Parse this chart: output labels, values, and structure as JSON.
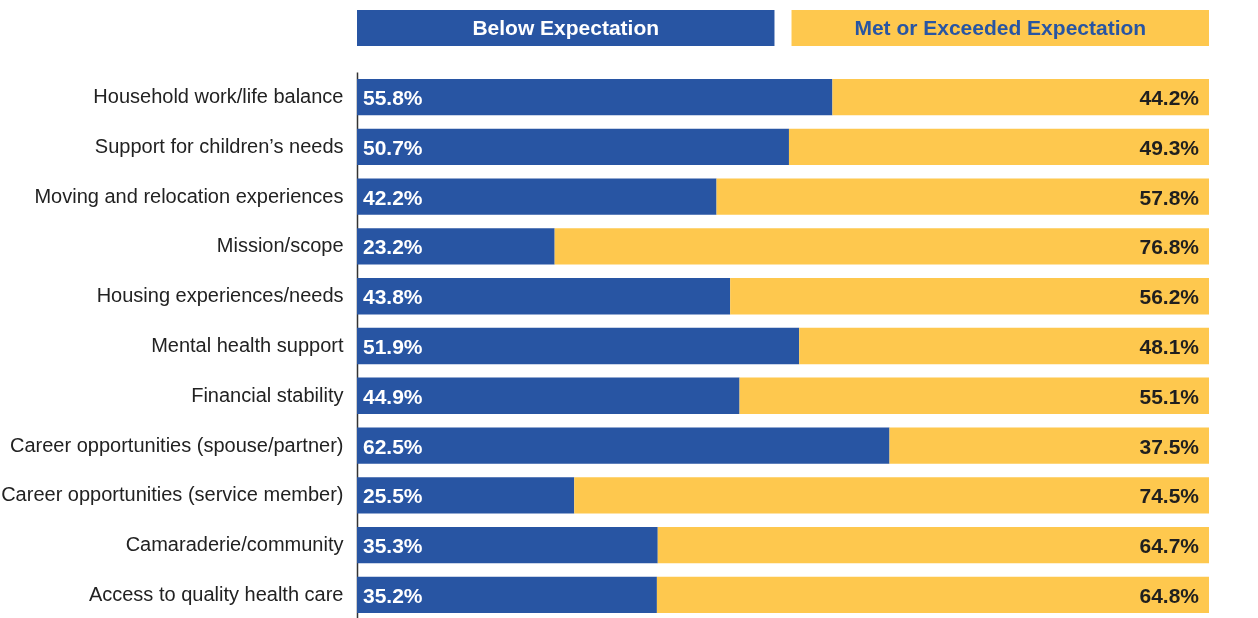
{
  "chart_data": {
    "type": "bar",
    "orientation": "horizontal",
    "stacked": true,
    "legend": "top",
    "categories": [
      "Household work/life balance",
      "Support for children’s needs",
      "Moving and relocation experiences",
      "Mission/scope",
      "Housing experiences/needs",
      "Mental health support",
      "Financial stability",
      "Career opportunities (spouse/partner)",
      "Career opportunities (service member)",
      "Camaraderie/community",
      "Access to quality health care"
    ],
    "series": [
      {
        "name": "Below Expectation",
        "color": "#2855a3",
        "values": [
          55.8,
          50.7,
          42.2,
          23.2,
          43.8,
          51.9,
          44.9,
          62.5,
          25.5,
          35.3,
          35.2
        ],
        "value_labels": [
          "55.8%",
          "50.7%",
          "42.2%",
          "23.2%",
          "43.8%",
          "51.9%",
          "44.9%",
          "62.5%",
          "25.5%",
          "35.3%",
          "35.2%"
        ]
      },
      {
        "name": "Met or Exceeded Expectation",
        "color": "#fec84e",
        "values": [
          44.2,
          49.3,
          57.8,
          76.8,
          56.2,
          48.1,
          55.1,
          37.5,
          74.5,
          64.7,
          64.8
        ],
        "value_labels": [
          "44.2%",
          "49.3%",
          "57.8%",
          "76.8%",
          "56.2%",
          "48.1%",
          "55.1%",
          "37.5%",
          "74.5%",
          "64.7%",
          "64.8%"
        ]
      }
    ]
  }
}
